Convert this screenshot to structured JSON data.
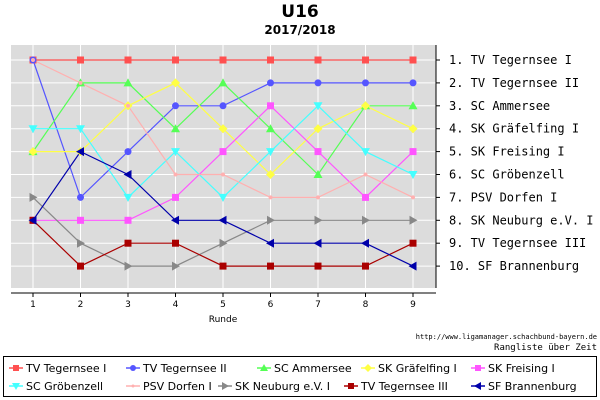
{
  "chart_data": {
    "type": "line",
    "title": "U16",
    "subtitle": "2017/2018",
    "xlabel": "Runde",
    "ylabel": "",
    "x": [
      1,
      2,
      3,
      4,
      5,
      6,
      7,
      8,
      9
    ],
    "ylim": [
      1,
      10
    ],
    "y_inverted": true,
    "grid": true,
    "legend_position": "bottom",
    "rank_labels": [
      "1. TV Tegernsee I",
      "2. TV Tegernsee II",
      "3. SC Ammersee",
      "4. SK Gräfelfing I",
      "5. SK Freising I",
      "6. SC Gröbenzell",
      "7. PSV Dorfen I",
      "8. SK Neuburg e.V. I",
      "9. TV Tegernsee III",
      "10. SF Brannenburg"
    ],
    "series": [
      {
        "name": "TV Tegernsee I",
        "color": "#ff5050",
        "marker": "square",
        "values": [
          1,
          1,
          1,
          1,
          1,
          1,
          1,
          1,
          1
        ]
      },
      {
        "name": "TV Tegernsee II",
        "color": "#5555ff",
        "marker": "circle",
        "values": [
          1,
          7,
          5,
          3,
          3,
          2,
          2,
          2,
          2
        ]
      },
      {
        "name": "SC Ammersee",
        "color": "#55ff55",
        "marker": "triangle-up",
        "values": [
          5,
          2,
          2,
          4,
          2,
          4,
          6,
          3,
          3
        ]
      },
      {
        "name": "SK Gräfelfing I",
        "color": "#ffff44",
        "marker": "diamond",
        "values": [
          5,
          5,
          3,
          2,
          4,
          6,
          4,
          3,
          4
        ]
      },
      {
        "name": "SK Freising I",
        "color": "#ff55ff",
        "marker": "square",
        "values": [
          8,
          8,
          8,
          7,
          5,
          3,
          5,
          7,
          5
        ]
      },
      {
        "name": "SC Gröbenzell",
        "color": "#44ffff",
        "marker": "triangle-down",
        "values": [
          4,
          4,
          7,
          5,
          7,
          5,
          3,
          5,
          6
        ]
      },
      {
        "name": "PSV Dorfen I",
        "color": "#ffb0b0",
        "marker": "dot",
        "values": [
          1,
          2,
          3,
          6,
          6,
          7,
          7,
          6,
          7
        ]
      },
      {
        "name": "SK Neuburg e.V. I",
        "color": "#888888",
        "marker": "triangle-right",
        "values": [
          7,
          9,
          10,
          10,
          9,
          8,
          8,
          8,
          8
        ]
      },
      {
        "name": "TV Tegernsee III",
        "color": "#aa0000",
        "marker": "square",
        "values": [
          8,
          10,
          9,
          9,
          10,
          10,
          10,
          10,
          9
        ]
      },
      {
        "name": "SF Brannenburg",
        "color": "#0000aa",
        "marker": "triangle-left",
        "values": [
          8,
          5,
          6,
          8,
          8,
          9,
          9,
          9,
          10
        ]
      }
    ]
  },
  "source_text": "http://www.ligamanager.schachbund-bayern.de",
  "caption_text": "Rangliste über Zeit"
}
